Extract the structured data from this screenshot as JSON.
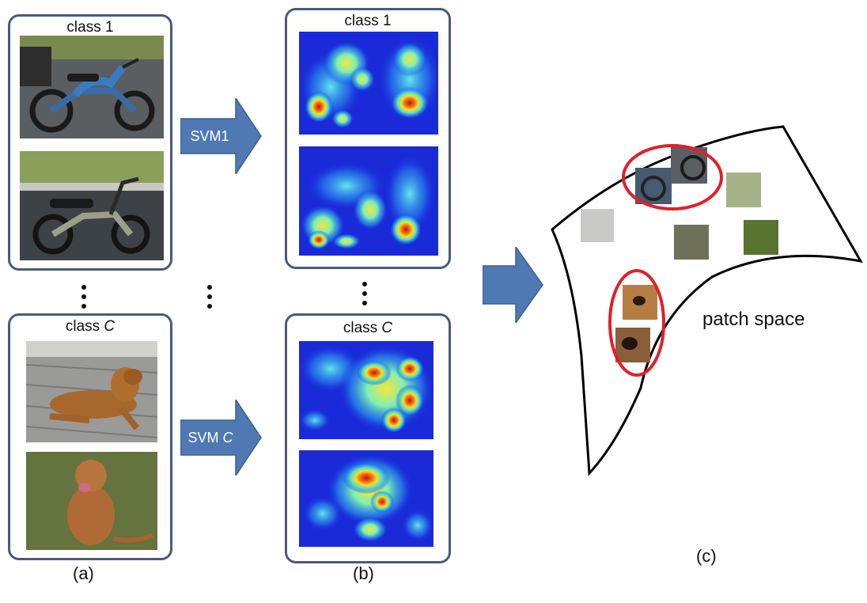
{
  "panel_a": {
    "top_box_label_prefix": "class ",
    "top_box_label_value": "1",
    "bottom_box_label_prefix": "class ",
    "bottom_box_label_value": "C",
    "caption": "(a)"
  },
  "panel_b": {
    "top_box_label_prefix": "class ",
    "top_box_label_value": "1",
    "bottom_box_label_prefix": "class ",
    "bottom_box_label_value": "C",
    "caption": "(b)"
  },
  "arrows": {
    "svm1_label": "SVM1",
    "svmc_label_prefix": "SVM ",
    "svmc_label_value": "C"
  },
  "panel_c": {
    "space_label": "patch space",
    "caption": "(c)"
  },
  "colors": {
    "box_border": "#4a5b78",
    "arrow_fill": "#4f79b3",
    "cluster_ring": "#e0202a",
    "heatmap_low": "#1a2ad8",
    "heatmap_high": "#c81212"
  }
}
